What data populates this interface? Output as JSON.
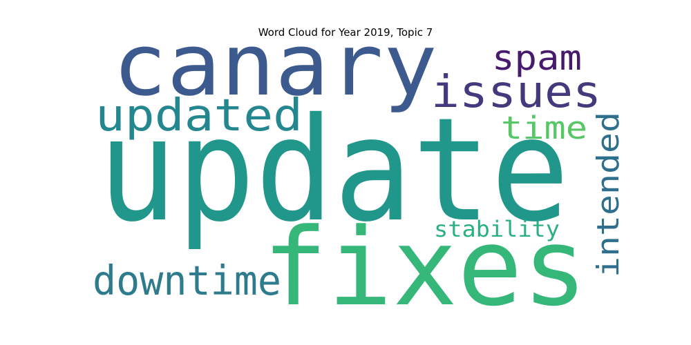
{
  "title": "Word Cloud for Year 2019, Topic 7",
  "words": [
    {
      "text": "update",
      "color": "#21968B"
    },
    {
      "text": "canary",
      "color": "#3D5A8F"
    },
    {
      "text": "fixes",
      "color": "#35B779"
    },
    {
      "text": "issues",
      "color": "#45397E"
    },
    {
      "text": "spam",
      "color": "#461A6C"
    },
    {
      "text": "updated",
      "color": "#24868E"
    },
    {
      "text": "time",
      "color": "#56C667"
    },
    {
      "text": "intended",
      "color": "#2F6F8E"
    },
    {
      "text": "downtime",
      "color": "#2E7B8E"
    },
    {
      "text": "stability",
      "color": "#2BB07F"
    }
  ]
}
